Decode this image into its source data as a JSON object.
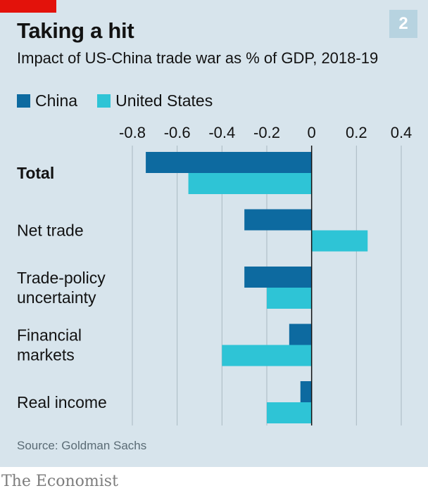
{
  "header": {
    "title": "Taking a hit",
    "subtitle": "Impact of US-China trade war as % of GDP, 2018-19",
    "badge": "2"
  },
  "footer": {
    "source": "Source: Goldman Sachs",
    "brand": "The Economist"
  },
  "colors": {
    "china": "#0d6aa0",
    "us": "#2ec4d6",
    "accent": "#e3120b"
  },
  "chart_data": {
    "type": "bar",
    "orientation": "horizontal",
    "title": "Taking a hit",
    "subtitle": "Impact of US-China trade war as % of GDP, 2018-19",
    "categories": [
      "Total",
      "Net trade",
      "Trade-policy uncertainty",
      "Financial markets",
      "Real income"
    ],
    "category_lines": [
      [
        "Total"
      ],
      [
        "Net trade"
      ],
      [
        "Trade-policy",
        "uncertainty"
      ],
      [
        "Financial",
        "markets"
      ],
      [
        "Real income"
      ]
    ],
    "bold_categories": [
      "Total"
    ],
    "series": [
      {
        "name": "China",
        "color": "#0d6aa0",
        "values": [
          -0.74,
          -0.3,
          -0.3,
          -0.1,
          -0.05
        ]
      },
      {
        "name": "United States",
        "color": "#2ec4d6",
        "values": [
          -0.55,
          0.25,
          -0.2,
          -0.4,
          -0.2
        ]
      }
    ],
    "xlim": [
      -0.8,
      0.4
    ],
    "xticks": [
      -0.8,
      -0.6,
      -0.4,
      -0.2,
      0,
      0.2,
      0.4
    ],
    "xtick_labels": [
      "-0.8",
      "-0.6",
      "-0.4",
      "-0.2",
      "0",
      "0.2",
      "0.4"
    ],
    "axis_position": "top",
    "grid": true,
    "legend": "top-left"
  }
}
